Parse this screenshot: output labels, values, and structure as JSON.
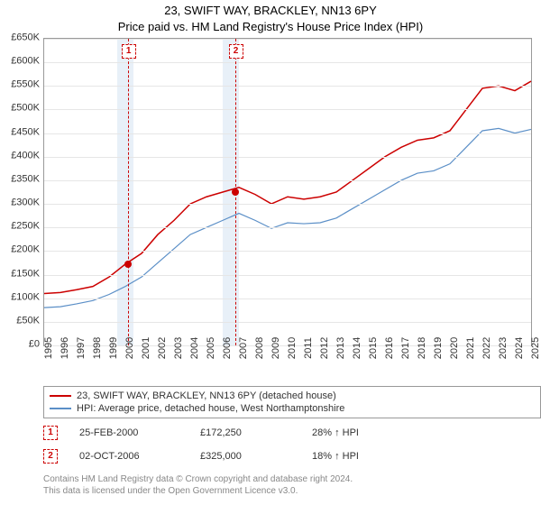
{
  "title_line1": "23, SWIFT WAY, BRACKLEY, NN13 6PY",
  "title_line2": "Price paid vs. HM Land Registry's House Price Index (HPI)",
  "chart": {
    "type": "line",
    "x_years": [
      1995,
      1996,
      1997,
      1998,
      1999,
      2000,
      2001,
      2002,
      2003,
      2004,
      2005,
      2006,
      2007,
      2008,
      2009,
      2010,
      2011,
      2012,
      2013,
      2014,
      2015,
      2016,
      2017,
      2018,
      2019,
      2020,
      2021,
      2022,
      2023,
      2024,
      2025
    ],
    "ylim": [
      0,
      650000
    ],
    "ytick_step": 50000,
    "ytick_labels": [
      "£0",
      "£50K",
      "£100K",
      "£150K",
      "£200K",
      "£250K",
      "£300K",
      "£350K",
      "£400K",
      "£450K",
      "£500K",
      "£550K",
      "£600K",
      "£650K"
    ],
    "background_color": "#ffffff",
    "grid_color": "#e6e6e6",
    "border_color": "#999999",
    "shaded_bands": [
      {
        "from_year": 1999.5,
        "to_year": 2000.5,
        "color": "#e8f0f8"
      },
      {
        "from_year": 2006.0,
        "to_year": 2007.0,
        "color": "#e8f0f8"
      }
    ],
    "series": [
      {
        "name": "23, SWIFT WAY, BRACKLEY, NN13 6PY (detached house)",
        "color": "#cc0000",
        "line_width": 1.5,
        "data": [
          [
            1995,
            110000
          ],
          [
            1996,
            112000
          ],
          [
            1997,
            118000
          ],
          [
            1998,
            125000
          ],
          [
            1999,
            145000
          ],
          [
            2000,
            172250
          ],
          [
            2001,
            195000
          ],
          [
            2002,
            235000
          ],
          [
            2003,
            265000
          ],
          [
            2004,
            300000
          ],
          [
            2005,
            315000
          ],
          [
            2006,
            325000
          ],
          [
            2007,
            335000
          ],
          [
            2008,
            320000
          ],
          [
            2009,
            300000
          ],
          [
            2010,
            315000
          ],
          [
            2011,
            310000
          ],
          [
            2012,
            315000
          ],
          [
            2013,
            325000
          ],
          [
            2014,
            350000
          ],
          [
            2015,
            375000
          ],
          [
            2016,
            400000
          ],
          [
            2017,
            420000
          ],
          [
            2018,
            435000
          ],
          [
            2019,
            440000
          ],
          [
            2020,
            455000
          ],
          [
            2021,
            500000
          ],
          [
            2022,
            545000
          ],
          [
            2023,
            550000
          ],
          [
            2024,
            540000
          ],
          [
            2025,
            560000
          ]
        ]
      },
      {
        "name": "HPI: Average price, detached house, West Northamptonshire",
        "color": "#5b8fc7",
        "line_width": 1.2,
        "data": [
          [
            1995,
            80000
          ],
          [
            1996,
            82000
          ],
          [
            1997,
            88000
          ],
          [
            1998,
            95000
          ],
          [
            1999,
            108000
          ],
          [
            2000,
            125000
          ],
          [
            2001,
            145000
          ],
          [
            2002,
            175000
          ],
          [
            2003,
            205000
          ],
          [
            2004,
            235000
          ],
          [
            2005,
            250000
          ],
          [
            2006,
            265000
          ],
          [
            2007,
            280000
          ],
          [
            2008,
            265000
          ],
          [
            2009,
            248000
          ],
          [
            2010,
            260000
          ],
          [
            2011,
            258000
          ],
          [
            2012,
            260000
          ],
          [
            2013,
            270000
          ],
          [
            2014,
            290000
          ],
          [
            2015,
            310000
          ],
          [
            2016,
            330000
          ],
          [
            2017,
            350000
          ],
          [
            2018,
            365000
          ],
          [
            2019,
            370000
          ],
          [
            2020,
            385000
          ],
          [
            2021,
            420000
          ],
          [
            2022,
            455000
          ],
          [
            2023,
            460000
          ],
          [
            2024,
            450000
          ],
          [
            2025,
            458000
          ]
        ]
      }
    ],
    "sale_markers": [
      {
        "n": "1",
        "year": 2000.15,
        "price": 172250,
        "color": "#cc0000"
      },
      {
        "n": "2",
        "year": 2006.75,
        "price": 325000,
        "color": "#cc0000"
      }
    ],
    "vlines": [
      {
        "year": 2000.15,
        "color": "#cc0000"
      },
      {
        "year": 2006.75,
        "color": "#cc0000"
      }
    ],
    "title_fontsize": 13,
    "tick_fontsize": 11,
    "legend_fontsize": 11
  },
  "legend": {
    "items": [
      {
        "color": "#cc0000",
        "label": "23, SWIFT WAY, BRACKLEY, NN13 6PY (detached house)"
      },
      {
        "color": "#5b8fc7",
        "label": "HPI: Average price, detached house, West Northamptonshire"
      }
    ]
  },
  "sales": [
    {
      "n": "1",
      "date": "25-FEB-2000",
      "price": "£172,250",
      "delta": "28% ↑ HPI"
    },
    {
      "n": "2",
      "date": "02-OCT-2006",
      "price": "£325,000",
      "delta": "18% ↑ HPI"
    }
  ],
  "attribution_line1": "Contains HM Land Registry data © Crown copyright and database right 2024.",
  "attribution_line2": "This data is licensed under the Open Government Licence v3.0."
}
